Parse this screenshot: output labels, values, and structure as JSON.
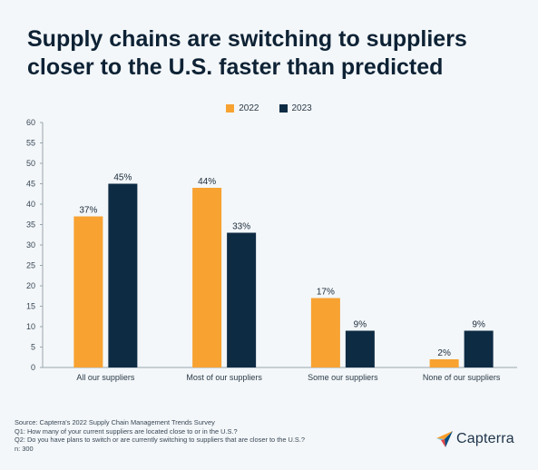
{
  "title_lines": [
    "Supply chains are switching to suppliers",
    "closer to the U.S. faster than predicted"
  ],
  "footer": {
    "lines": [
      "Source: Capterra's 2022 Supply Chain Management Trends Survey",
      "Q1: How many of your current suppliers are located close to or in the U.S.?",
      "Q2: Do you have plans to switch or are currently switching to suppliers that are closer to the U.S.?",
      "n: 300"
    ]
  },
  "logo": {
    "text": "Capterra"
  },
  "colors": {
    "series_2022": "#f7a231",
    "series_2023": "#0e2b44",
    "axis": "#9aa5ad"
  },
  "chart_data": {
    "type": "bar",
    "title": "Supply chains are switching to suppliers closer to the U.S. faster than predicted",
    "categories": [
      "All our suppliers",
      "Most of our suppliers",
      "Some our suppliers",
      "None of our suppliers"
    ],
    "series": [
      {
        "name": "2022",
        "values": [
          37,
          44,
          17,
          2
        ],
        "labels": [
          "37%",
          "44%",
          "17%",
          "2%"
        ]
      },
      {
        "name": "2023",
        "values": [
          45,
          33,
          9,
          9
        ],
        "labels": [
          "45%",
          "33%",
          "9%",
          "9%"
        ]
      }
    ],
    "yticks": [
      0,
      5,
      10,
      15,
      20,
      25,
      30,
      35,
      40,
      45,
      50,
      55,
      60
    ],
    "ylim": [
      0,
      60
    ],
    "grid": false,
    "legend": "top-center"
  }
}
